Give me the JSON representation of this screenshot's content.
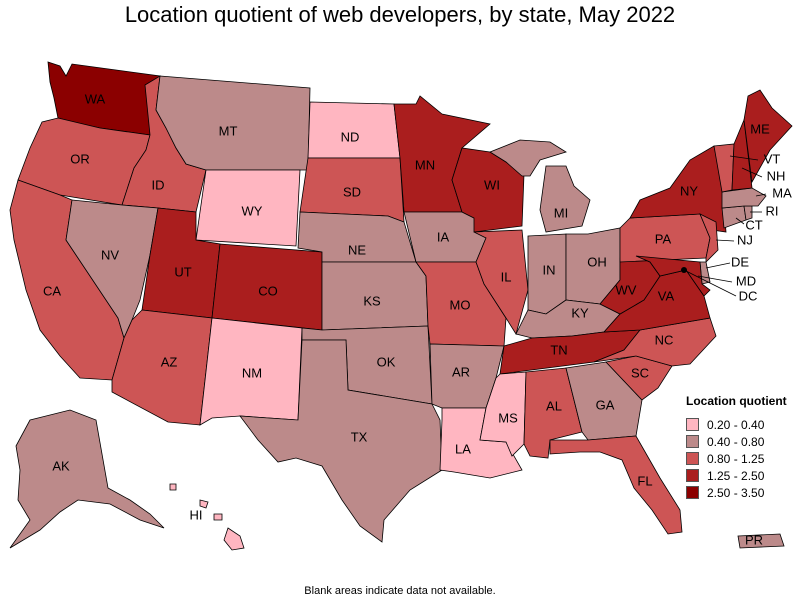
{
  "title": "Location quotient of web developers, by state, May 2022",
  "footnote": "Blank areas indicate data not available.",
  "legend": {
    "title": "Location quotient",
    "bins": [
      {
        "label": "0.20 - 0.40",
        "color": "#ffb6c1"
      },
      {
        "label": "0.40 - 0.80",
        "color": "#bc8a8a"
      },
      {
        "label": "0.80 - 1.25",
        "color": "#cd5555"
      },
      {
        "label": "1.25 - 2.50",
        "color": "#aa1e1e"
      },
      {
        "label": "2.50 - 3.50",
        "color": "#8b0000"
      }
    ]
  },
  "states": [
    {
      "abbr": "WA",
      "bin": 4
    },
    {
      "abbr": "OR",
      "bin": 2
    },
    {
      "abbr": "CA",
      "bin": 2
    },
    {
      "abbr": "ID",
      "bin": 2
    },
    {
      "abbr": "NV",
      "bin": 1
    },
    {
      "abbr": "MT",
      "bin": 1
    },
    {
      "abbr": "WY",
      "bin": 0
    },
    {
      "abbr": "UT",
      "bin": 3
    },
    {
      "abbr": "AZ",
      "bin": 2
    },
    {
      "abbr": "CO",
      "bin": 3
    },
    {
      "abbr": "NM",
      "bin": 0
    },
    {
      "abbr": "ND",
      "bin": 0
    },
    {
      "abbr": "SD",
      "bin": 2
    },
    {
      "abbr": "NE",
      "bin": 1
    },
    {
      "abbr": "KS",
      "bin": 1
    },
    {
      "abbr": "OK",
      "bin": 1
    },
    {
      "abbr": "TX",
      "bin": 1
    },
    {
      "abbr": "MN",
      "bin": 3
    },
    {
      "abbr": "IA",
      "bin": 1
    },
    {
      "abbr": "MO",
      "bin": 2
    },
    {
      "abbr": "AR",
      "bin": 1
    },
    {
      "abbr": "LA",
      "bin": 0
    },
    {
      "abbr": "WI",
      "bin": 3
    },
    {
      "abbr": "IL",
      "bin": 2
    },
    {
      "abbr": "MI",
      "bin": 1
    },
    {
      "abbr": "IN",
      "bin": 1
    },
    {
      "abbr": "OH",
      "bin": 1
    },
    {
      "abbr": "KY",
      "bin": 1
    },
    {
      "abbr": "TN",
      "bin": 3
    },
    {
      "abbr": "MS",
      "bin": 0
    },
    {
      "abbr": "AL",
      "bin": 2
    },
    {
      "abbr": "GA",
      "bin": 1
    },
    {
      "abbr": "FL",
      "bin": 2
    },
    {
      "abbr": "SC",
      "bin": 2
    },
    {
      "abbr": "NC",
      "bin": 2
    },
    {
      "abbr": "VA",
      "bin": 3
    },
    {
      "abbr": "WV",
      "bin": 3
    },
    {
      "abbr": "PA",
      "bin": 2
    },
    {
      "abbr": "NY",
      "bin": 3
    },
    {
      "abbr": "ME",
      "bin": 3
    },
    {
      "abbr": "VT",
      "bin": 2
    },
    {
      "abbr": "NH",
      "bin": 3
    },
    {
      "abbr": "MA",
      "bin": 1
    },
    {
      "abbr": "RI",
      "bin": 1
    },
    {
      "abbr": "CT",
      "bin": 1
    },
    {
      "abbr": "NJ",
      "bin": 2
    },
    {
      "abbr": "DE",
      "bin": 1
    },
    {
      "abbr": "MD",
      "bin": 3
    },
    {
      "abbr": "DC",
      "bin": 4
    },
    {
      "abbr": "AK",
      "bin": 1
    },
    {
      "abbr": "HI",
      "bin": 0
    },
    {
      "abbr": "PR",
      "bin": 1
    }
  ]
}
